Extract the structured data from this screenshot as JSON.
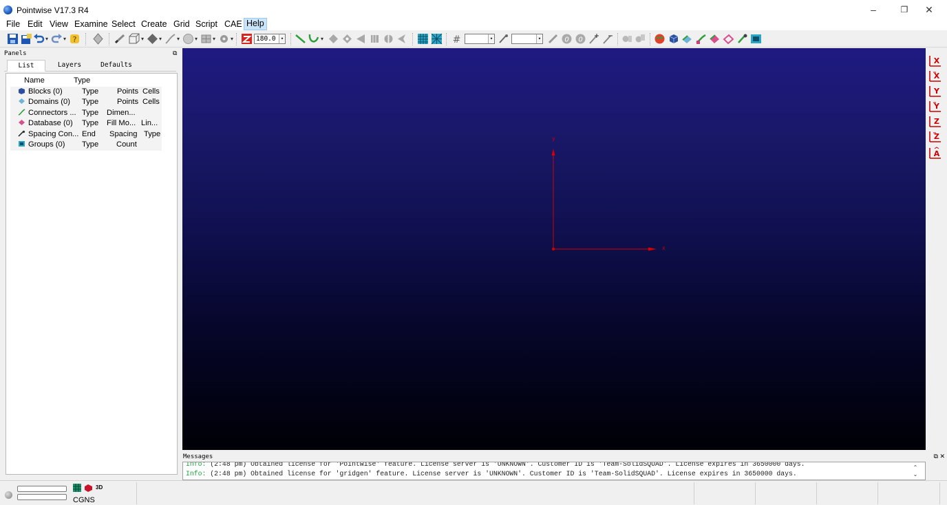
{
  "window": {
    "title": "Pointwise V17.3 R4",
    "minimize_glyph": "–",
    "maximize_glyph": "❐",
    "close_glyph": "✕"
  },
  "menu": {
    "items": [
      "File",
      "Edit",
      "View",
      "Examine",
      "Select",
      "Create",
      "Grid",
      "Script",
      "CAE",
      "Help"
    ],
    "active": "Help"
  },
  "toolbar": {
    "angle_value": "180.0",
    "field_dropdown_glyph": "▾",
    "drop_glyph": "▾"
  },
  "panels": {
    "title": "Panels",
    "float_glyph": "⧉",
    "tabs": [
      "List",
      "Layers",
      "Defaults"
    ],
    "selected_tab": "List",
    "columns": [
      "Name",
      "Type"
    ],
    "rows": [
      {
        "name": "Blocks (0)",
        "c1": "Type",
        "c2": "Points",
        "c3": "Cells",
        "icon": "block-icon",
        "color": "#3a5fa8"
      },
      {
        "name": "Domains (0)",
        "c1": "Type",
        "c2": "Points",
        "c3": "Cells",
        "icon": "domain-icon",
        "color": "#6cb4d8"
      },
      {
        "name": "Connectors ...",
        "c1": "Type",
        "c2": "Dimen...",
        "c3": "",
        "icon": "connector-icon",
        "color": "#2e9e3a"
      },
      {
        "name": "Database (0)",
        "c1": "Type",
        "c2": "Fill Mo...",
        "c3": "Lin...",
        "icon": "database-icon",
        "color": "#d84f8c"
      },
      {
        "name": "Spacing Con...",
        "c1": "End",
        "c2": "Spacing",
        "c3": "Type",
        "icon": "spacing-icon",
        "color": "#444444"
      },
      {
        "name": "Groups (0)",
        "c1": "Type",
        "c2": "Count",
        "c3": "",
        "icon": "group-icon",
        "color": "#2a9ab0"
      }
    ]
  },
  "viewport": {
    "axis_x_label": "x",
    "axis_y_label": "y",
    "axis_color": "#d40000"
  },
  "view_toolbar": {
    "buttons": [
      "+X",
      "-X",
      "+Y",
      "-Y",
      "+Z",
      "-Z",
      "A"
    ],
    "color": "#c00000"
  },
  "messages": {
    "title": "Messages",
    "controls": "⧉ ✕",
    "lines": [
      {
        "prefix": "Info:",
        "text": "(2:48 pm) Obtained license for 'Pointwise' feature. License server is 'UNKNOWN'. Customer ID is 'Team-SolidSQUAD'. License expires in 3650000 days."
      },
      {
        "prefix": "Info:",
        "text": "(2:48 pm) Obtained license for 'gridgen' feature. License server is 'UNKNOWN'. Customer ID is 'Team-SolidSQUAD'. License expires in 3650000 days."
      }
    ],
    "scroll_up": "⌃",
    "scroll_down": "⌄"
  },
  "status": {
    "solver": "CGNS",
    "dimension": "3D"
  }
}
